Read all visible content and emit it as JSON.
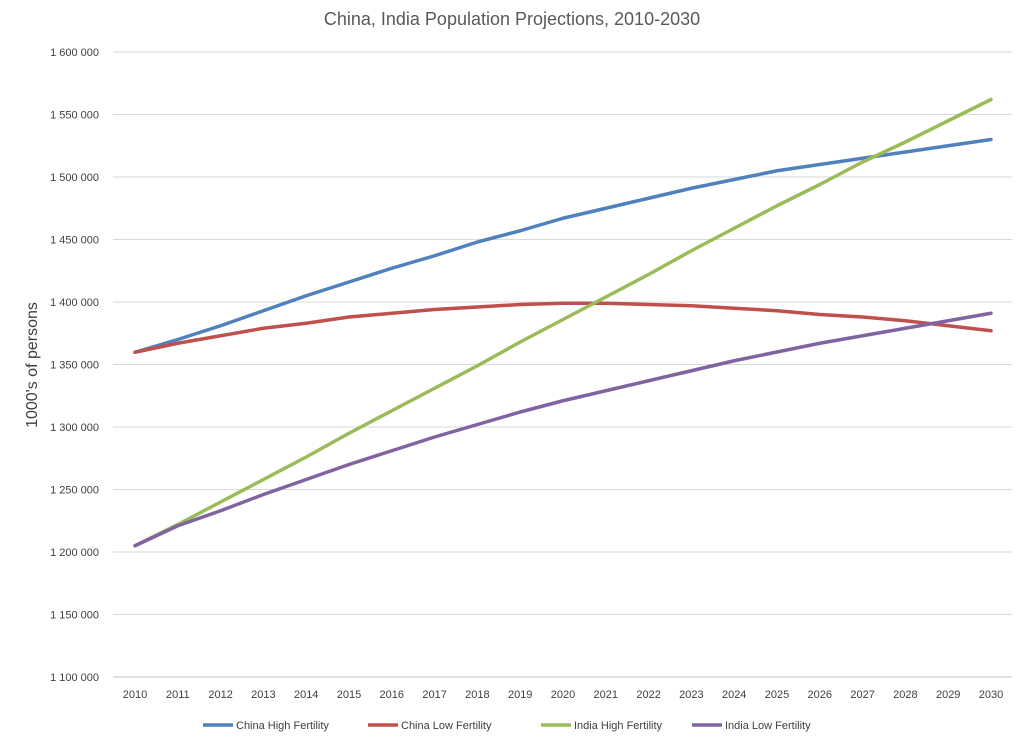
{
  "chart_data": {
    "type": "line",
    "title": "China, India Population Projections, 2010-2030",
    "xlabel": "",
    "ylabel": "1000's of persons",
    "categories": [
      "2010",
      "2011",
      "2012",
      "2013",
      "2014",
      "2015",
      "2016",
      "2017",
      "2018",
      "2019",
      "2020",
      "2021",
      "2022",
      "2023",
      "2024",
      "2025",
      "2026",
      "2027",
      "2028",
      "2029",
      "2030"
    ],
    "ylim": [
      1100000,
      1600000
    ],
    "yticks": [
      "1 100 000",
      "1 150 000",
      "1 200 000",
      "1 250 000",
      "1 300 000",
      "1 350 000",
      "1 400 000",
      "1 450 000",
      "1 500 000",
      "1 550 000",
      "1 600 000"
    ],
    "ytick_values": [
      1100000,
      1150000,
      1200000,
      1250000,
      1300000,
      1350000,
      1400000,
      1450000,
      1500000,
      1550000,
      1600000
    ],
    "grid": true,
    "legend_position": "bottom",
    "series": [
      {
        "name": "China High Fertility",
        "color": "#4f81bd",
        "values": [
          1359800,
          1370000,
          1381000,
          1393000,
          1405000,
          1416000,
          1427000,
          1437000,
          1448000,
          1457000,
          1467000,
          1475000,
          1483000,
          1491000,
          1498000,
          1505000,
          1510000,
          1515000,
          1520000,
          1525000,
          1530000
        ]
      },
      {
        "name": "China Low Fertility",
        "color": "#c0504d",
        "values": [
          1359800,
          1367000,
          1373000,
          1379000,
          1383000,
          1388000,
          1391000,
          1394000,
          1396000,
          1398000,
          1399000,
          1399000,
          1398000,
          1397000,
          1395000,
          1393000,
          1390000,
          1388000,
          1385000,
          1381000,
          1377000
        ]
      },
      {
        "name": "India High Fertility",
        "color": "#9bbb59",
        "values": [
          1205000,
          1222000,
          1240000,
          1258000,
          1276000,
          1295000,
          1313000,
          1331000,
          1349000,
          1368000,
          1386000,
          1404000,
          1422000,
          1441000,
          1459000,
          1477000,
          1494000,
          1512000,
          1528000,
          1545000,
          1562000
        ]
      },
      {
        "name": "India Low Fertility",
        "color": "#8064a2",
        "values": [
          1205000,
          1221000,
          1233000,
          1246000,
          1258000,
          1270000,
          1281000,
          1292000,
          1302000,
          1312000,
          1321000,
          1329000,
          1337000,
          1345000,
          1353000,
          1360000,
          1367000,
          1373000,
          1379000,
          1385000,
          1391000
        ]
      }
    ]
  }
}
